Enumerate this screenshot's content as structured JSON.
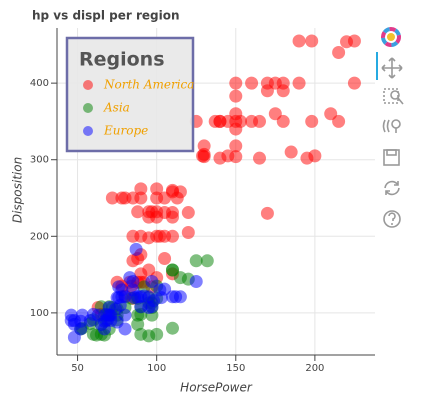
{
  "chart_data": {
    "type": "scatter",
    "title": "hp vs displ per region",
    "x_label": "HorsePower",
    "y_label": "Disposition",
    "xlim": [
      37,
      238
    ],
    "ylim": [
      45,
      472
    ],
    "xticks": [
      50,
      100,
      150,
      200
    ],
    "yticks": [
      100,
      200,
      300,
      400
    ],
    "grid": true,
    "alpha": 0.5,
    "legend_title": "Regions",
    "legend_location": "top_left",
    "legend_text_color": "#f0a000",
    "series": [
      {
        "name": "North America",
        "color": "#ff0000",
        "x": [
          130,
          140,
          150,
          150,
          140,
          198,
          220,
          215,
          225,
          190,
          170,
          160,
          150,
          225,
          175,
          153,
          150,
          150,
          145,
          137,
          150,
          198,
          190,
          215,
          165,
          180,
          175,
          180,
          150,
          170,
          180,
          130,
          145,
          165,
          110,
          105,
          100,
          88,
          100,
          85,
          90,
          110,
          105,
          100,
          95,
          129,
          125,
          113,
          105,
          100,
          85,
          95,
          90,
          110,
          120,
          72,
          78,
          80,
          90,
          100,
          110,
          97,
          110,
          115,
          120,
          170,
          140,
          210,
          200,
          195,
          185,
          160,
          130,
          102,
          95,
          90,
          88,
          85,
          90,
          95,
          110,
          105,
          90,
          85,
          80,
          70,
          65,
          63,
          75,
          88,
          92,
          97,
          100,
          83,
          78,
          84
        ],
        "values": [
          307,
          350,
          400,
          350,
          302,
          455,
          454,
          440,
          455,
          455,
          400,
          400,
          383,
          400,
          400,
          350,
          318,
          304,
          350,
          350,
          340,
          350,
          400,
          350,
          350,
          400,
          360,
          350,
          360,
          390,
          390,
          318,
          305,
          302,
          258,
          250,
          250,
          232,
          232,
          250,
          250,
          225,
          231,
          225,
          225,
          305,
          350,
          250,
          200,
          200,
          200,
          232,
          200,
          200,
          205,
          250,
          250,
          250,
          262,
          262,
          260,
          232,
          231,
          258,
          231,
          230,
          350,
          360,
          305,
          302,
          310,
          350,
          304,
          200,
          198,
          176,
          171,
          168,
          151,
          156,
          151,
          171,
          140,
          119,
          122,
          97,
          98,
          107,
          140,
          140,
          140,
          134,
          146,
          140,
          135,
          135
        ]
      },
      {
        "name": "Asia",
        "color": "#008000",
        "x": [
          95,
          88,
          97,
          65,
          69,
          60,
          67,
          75,
          88,
          95,
          97,
          110,
          120,
          132,
          115,
          100,
          100,
          75,
          70,
          65,
          67,
          52,
          68,
          58,
          62,
          60,
          90,
          84,
          92,
          100,
          95,
          110,
          90,
          65,
          53,
          70,
          72,
          80,
          125,
          110,
          97,
          90,
          75,
          88
        ],
        "values": [
          113,
          97,
          113,
          72,
          97,
          91,
          97,
          97,
          119,
          120,
          97,
          156,
          144,
          168,
          146,
          135,
          119,
          91,
          79,
          85,
          71,
          79,
          90,
          86,
          71,
          72,
          108,
          119,
          134,
          72,
          70,
          80,
          72,
          108,
          80,
          108,
          107,
          107,
          168,
          156,
          107,
          98,
          105,
          85
        ]
      },
      {
        "name": "Europe",
        "color": "#0000ff",
        "x": [
          46,
          52,
          48,
          67,
          70,
          78,
          86,
          90,
          95,
          98,
          80,
          75,
          71,
          46,
          48,
          53,
          60,
          58,
          65,
          70,
          75,
          83,
          76,
          103,
          110,
          112,
          115,
          125,
          88,
          85,
          71,
          78,
          74,
          97,
          95,
          92,
          69,
          77,
          80,
          85,
          90,
          63,
          68,
          76,
          87,
          97,
          102,
          105,
          80,
          67,
          48,
          52
        ],
        "values": [
          97,
          79,
          90,
          79,
          97,
          121,
          120,
          121,
          121,
          116,
          97,
          88,
          90,
          90,
          68,
          97,
          98,
          90,
          85,
          107,
          120,
          146,
          120,
          120,
          121,
          121,
          121,
          141,
          121,
          141,
          97,
          130,
          105,
          108,
          107,
          122,
          91,
          110,
          121,
          130,
          108,
          97,
          98,
          134,
          183,
          141,
          130,
          131,
          79,
          89,
          85,
          89
        ]
      }
    ]
  }
}
